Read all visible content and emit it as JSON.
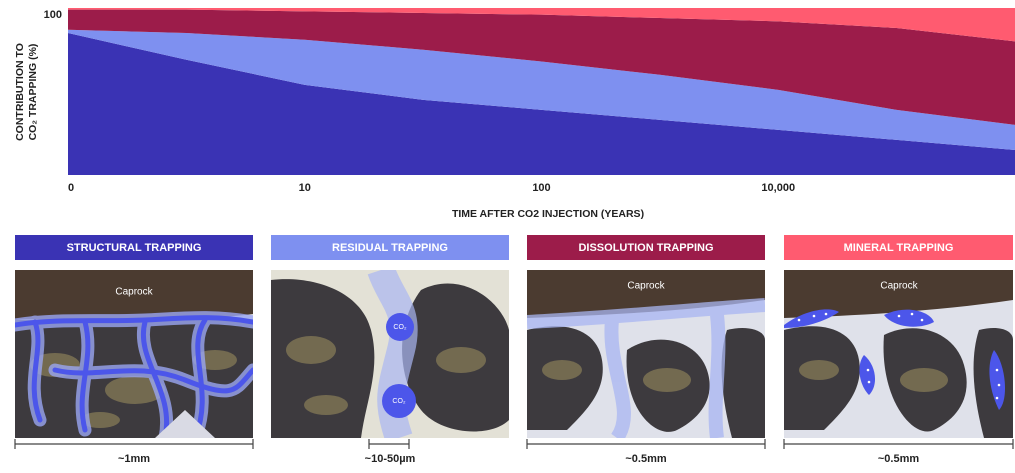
{
  "chart_data": {
    "type": "area",
    "stacked": true,
    "ylabel": [
      "CONTRIBUTION TO",
      "CO₂ TRAPPING (%)"
    ],
    "xlabel": "TIME AFTER CO2 INJECTION (YEARS)",
    "categories": [
      "0",
      null,
      "10",
      null,
      "100",
      null,
      "10,000",
      null,
      null
    ],
    "ylim": [
      0,
      100
    ],
    "yticks": [
      100
    ],
    "series": [
      {
        "name": "STRUCTURAL TRAPPING",
        "color": "#3a33b4",
        "values": [
          85,
          69,
          54,
          45,
          39,
          33,
          27,
          21,
          15
        ]
      },
      {
        "name": "RESIDUAL TRAPPING",
        "color": "#7e90f0",
        "values": [
          2,
          16,
          27,
          30,
          29,
          27,
          24,
          18,
          15
        ]
      },
      {
        "name": "DISSOLUTION TRAPPING",
        "color": "#9c1c4a",
        "values": [
          12,
          14,
          17,
          22,
          28,
          34,
          41,
          49,
          50
        ]
      },
      {
        "name": "MINERAL TRAPPING",
        "color": "#ff5b70",
        "values": [
          1,
          1,
          2,
          3,
          4,
          6,
          8,
          12,
          20
        ]
      }
    ]
  },
  "panels": [
    {
      "labels": [
        "Caprock"
      ],
      "scale": "~1mm"
    },
    {
      "labels": [
        "CO₂",
        "CO₂"
      ],
      "scale": "~10-50µm"
    },
    {
      "labels": [
        "Caprock"
      ],
      "scale": "~0.5mm"
    },
    {
      "labels": [
        "Caprock"
      ],
      "scale": "~0.5mm"
    }
  ]
}
